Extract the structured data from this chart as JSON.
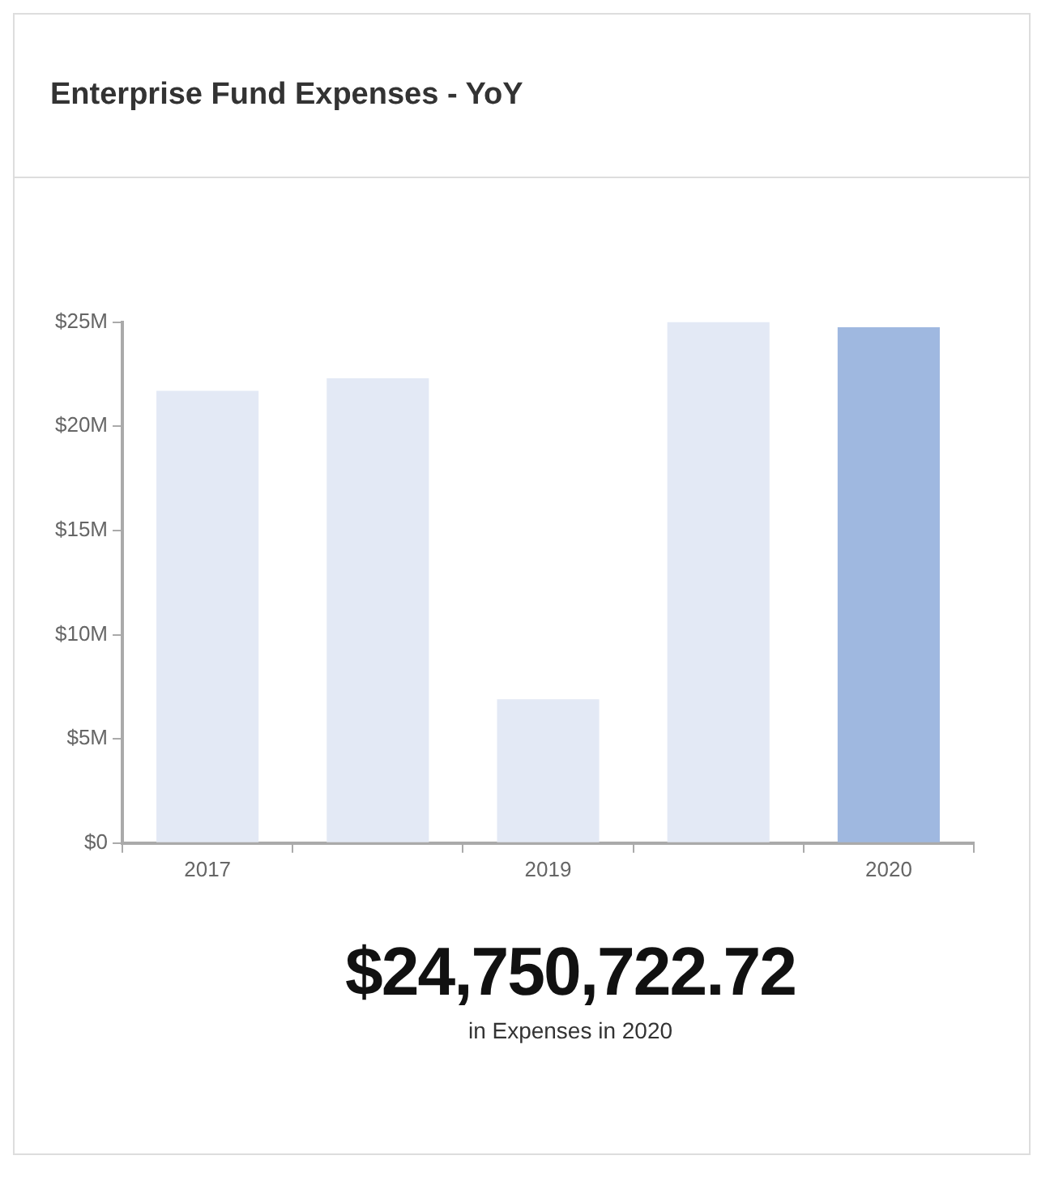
{
  "chart_data": {
    "type": "bar",
    "title": "Enterprise Fund Expenses - YoY",
    "categories": [
      "2017",
      null,
      "2019",
      null,
      "2020"
    ],
    "values": [
      21.7,
      22.3,
      6.9,
      25.0,
      24.75
    ],
    "colors": [
      "#e3e9f5",
      "#e3e9f5",
      "#e3e9f5",
      "#e3e9f5",
      "#9fb8e0"
    ],
    "ylim": [
      0,
      25
    ],
    "yticks": [
      {
        "value": 0,
        "label": "$0"
      },
      {
        "value": 5,
        "label": "$5M"
      },
      {
        "value": 10,
        "label": "$10M"
      },
      {
        "value": 15,
        "label": "$15M"
      },
      {
        "value": 20,
        "label": "$20M"
      },
      {
        "value": 25,
        "label": "$25M"
      }
    ],
    "grid": false,
    "annotations": [
      "$24,750,722.72",
      "in Expenses in 2020"
    ]
  }
}
